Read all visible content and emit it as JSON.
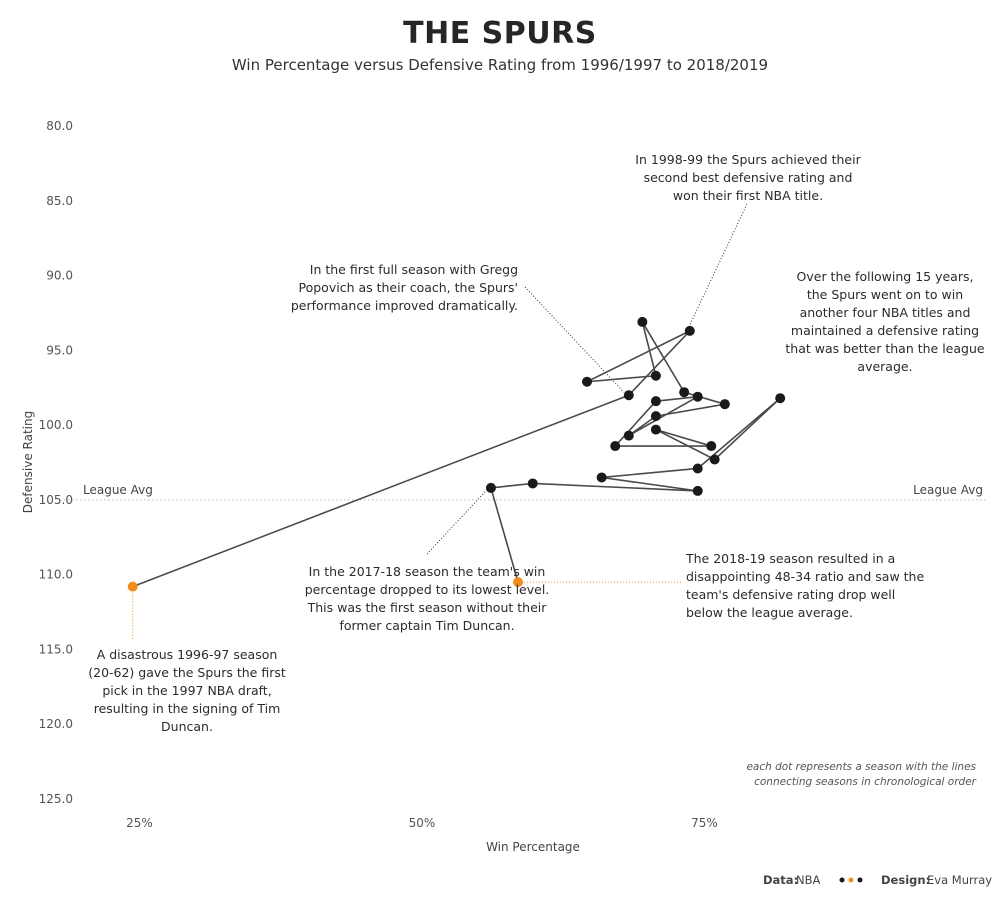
{
  "title": "THE SPURS",
  "subtitle": "Win Percentage versus Defensive Rating from 1996/1997 to 2018/2019",
  "colors": {
    "dot": "#1a1a1a",
    "highlight": "#f28c1e",
    "line": "#4a4a4a",
    "reference": "#bbbbbb"
  },
  "chart_data": {
    "type": "scatter",
    "xlabel": "Win Percentage",
    "ylabel": "Defensive Rating",
    "xlim": [
      0.2,
      1.0
    ],
    "ylim": [
      80,
      125
    ],
    "y_inverted": true,
    "x_ticks": [
      {
        "value": 0.25,
        "label": "25%"
      },
      {
        "value": 0.5,
        "label": "50%"
      },
      {
        "value": 0.75,
        "label": "75%"
      }
    ],
    "y_ticks": [
      {
        "value": 80,
        "label": "80.0"
      },
      {
        "value": 85,
        "label": "85.0"
      },
      {
        "value": 90,
        "label": "90.0"
      },
      {
        "value": 95,
        "label": "95.0"
      },
      {
        "value": 100,
        "label": "100.0"
      },
      {
        "value": 105,
        "label": "105.0"
      },
      {
        "value": 110,
        "label": "110.0"
      },
      {
        "value": 115,
        "label": "115.0"
      },
      {
        "value": 120,
        "label": "120.0"
      },
      {
        "value": 125,
        "label": "125.0"
      }
    ],
    "reference_line": {
      "value": 105,
      "label_left": "League Avg",
      "label_right": "League Avg"
    },
    "points": [
      {
        "x": 0.244,
        "y": 110.8,
        "highlight": true
      },
      {
        "x": 0.683,
        "y": 98.0
      },
      {
        "x": 0.737,
        "y": 93.7
      },
      {
        "x": 0.646,
        "y": 97.1
      },
      {
        "x": 0.707,
        "y": 96.7
      },
      {
        "x": 0.695,
        "y": 93.1
      },
      {
        "x": 0.732,
        "y": 97.8
      },
      {
        "x": 0.768,
        "y": 98.6
      },
      {
        "x": 0.707,
        "y": 99.4
      },
      {
        "x": 0.683,
        "y": 100.7
      },
      {
        "x": 0.744,
        "y": 98.1
      },
      {
        "x": 0.707,
        "y": 98.4
      },
      {
        "x": 0.671,
        "y": 101.4
      },
      {
        "x": 0.756,
        "y": 101.4
      },
      {
        "x": 0.707,
        "y": 100.3
      },
      {
        "x": 0.759,
        "y": 102.3
      },
      {
        "x": 0.817,
        "y": 98.2
      },
      {
        "x": 0.744,
        "y": 102.9
      },
      {
        "x": 0.659,
        "y": 103.5
      },
      {
        "x": 0.744,
        "y": 104.4
      },
      {
        "x": 0.598,
        "y": 103.9
      },
      {
        "x": 0.561,
        "y": 104.2
      },
      {
        "x": 0.585,
        "y": 110.5,
        "highlight": true
      }
    ],
    "annotations": [
      {
        "lines": [
          "In 1998-99 the Spurs achieved their",
          "second best defensive rating and",
          "won their first NBA title."
        ]
      },
      {
        "lines": [
          "In the first full season with Gregg",
          "Popovich as their coach, the Spurs'",
          "performance improved dramatically."
        ]
      },
      {
        "lines": [
          "Over the following 15 years,",
          "the Spurs went on to win",
          "another four NBA titles and",
          "maintained a defensive rating",
          "that was better than the league",
          "average."
        ]
      },
      {
        "lines": [
          "In the 2017-18 season the team's win",
          "percentage dropped to its lowest level.",
          "This was the first season without their",
          "former captain Tim Duncan."
        ]
      },
      {
        "lines": [
          "The 2018-19 season resulted in a",
          "disappointing 48-34 ratio and saw the",
          "team's defensive rating drop well",
          "below the league average."
        ]
      },
      {
        "lines": [
          "A disastrous 1996-97 season",
          "(20-62) gave the Spurs the first",
          "pick in the 1997 NBA draft,",
          "resulting in the signing of Tim",
          "Duncan."
        ]
      }
    ],
    "note_lines": [
      "each dot represents a season with the lines",
      "connecting seasons in chronological order"
    ]
  },
  "footer": {
    "data_label": "Data:",
    "data_value": "NBA",
    "design_label": "Design:",
    "design_value": "Eva Murray"
  }
}
